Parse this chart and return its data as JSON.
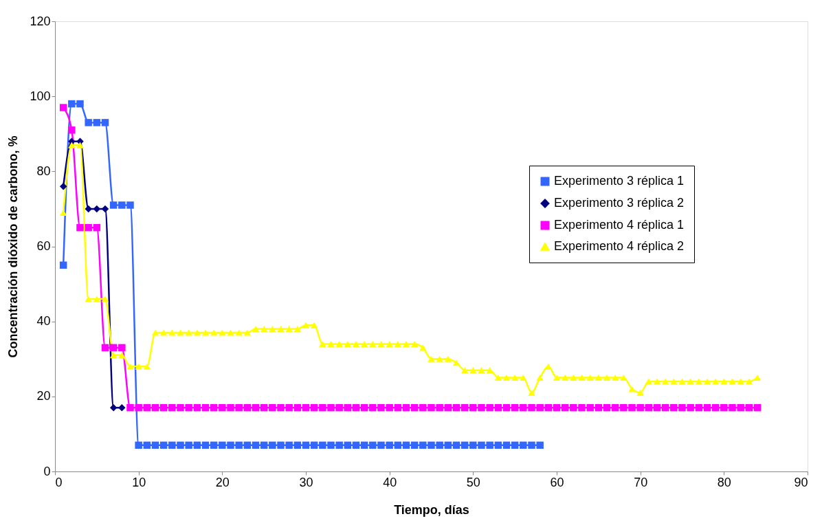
{
  "chart_data": {
    "type": "line",
    "xlabel": "Tiempo, días",
    "ylabel": "Concentración dióxido de carbono, %",
    "xlim": [
      0,
      90
    ],
    "xticks": [
      0,
      10,
      20,
      30,
      40,
      50,
      60,
      70,
      80,
      90
    ],
    "ylim": [
      0,
      120
    ],
    "yticks": [
      0,
      20,
      40,
      60,
      80,
      100,
      120
    ],
    "grid": false,
    "legend": "right",
    "line_style": "solid",
    "series": [
      {
        "name": "Experimento 3 réplica 1",
        "color": "#3366ff",
        "marker": "square",
        "x": [
          1,
          2,
          3,
          4,
          5,
          6,
          7,
          8,
          9,
          10,
          11,
          12,
          13,
          14,
          15,
          16,
          17,
          18,
          19,
          20,
          21,
          22,
          23,
          24,
          25,
          26,
          27,
          28,
          29,
          30,
          31,
          32,
          33,
          34,
          35,
          36,
          37,
          38,
          39,
          40,
          41,
          42,
          43,
          44,
          45,
          46,
          47,
          48,
          49,
          50,
          51,
          52,
          53,
          54,
          55,
          56,
          57,
          58
        ],
        "values": [
          55,
          98,
          98,
          93,
          93,
          93,
          71,
          71,
          71,
          7,
          7,
          7,
          7,
          7,
          7,
          7,
          7,
          7,
          7,
          7,
          7,
          7,
          7,
          7,
          7,
          7,
          7,
          7,
          7,
          7,
          7,
          7,
          7,
          7,
          7,
          7,
          7,
          7,
          7,
          7,
          7,
          7,
          7,
          7,
          7,
          7,
          7,
          7,
          7,
          7,
          7,
          7,
          7,
          7,
          7,
          7,
          7,
          7
        ]
      },
      {
        "name": "Experimento 3 réplica 2",
        "color": "#000080",
        "marker": "diamond",
        "x": [
          1,
          2,
          3,
          4,
          5,
          6,
          7,
          8
        ],
        "values": [
          76,
          88,
          88,
          70,
          70,
          70,
          17,
          17
        ]
      },
      {
        "name": "Experimento 4 réplica 1",
        "color": "#ff00ff",
        "marker": "square",
        "x": [
          1,
          2,
          3,
          4,
          5,
          6,
          7,
          8,
          9,
          10,
          11,
          12,
          13,
          14,
          15,
          16,
          17,
          18,
          19,
          20,
          21,
          22,
          23,
          24,
          25,
          26,
          27,
          28,
          29,
          30,
          31,
          32,
          33,
          34,
          35,
          36,
          37,
          38,
          39,
          40,
          41,
          42,
          43,
          44,
          45,
          46,
          47,
          48,
          49,
          50,
          51,
          52,
          53,
          54,
          55,
          56,
          57,
          58,
          59,
          60,
          61,
          62,
          63,
          64,
          65,
          66,
          67,
          68,
          69,
          70,
          71,
          72,
          73,
          74,
          75,
          76,
          77,
          78,
          79,
          80,
          81,
          82,
          83,
          84
        ],
        "values": [
          97,
          91,
          65,
          65,
          65,
          33,
          33,
          33,
          17,
          17,
          17,
          17,
          17,
          17,
          17,
          17,
          17,
          17,
          17,
          17,
          17,
          17,
          17,
          17,
          17,
          17,
          17,
          17,
          17,
          17,
          17,
          17,
          17,
          17,
          17,
          17,
          17,
          17,
          17,
          17,
          17,
          17,
          17,
          17,
          17,
          17,
          17,
          17,
          17,
          17,
          17,
          17,
          17,
          17,
          17,
          17,
          17,
          17,
          17,
          17,
          17,
          17,
          17,
          17,
          17,
          17,
          17,
          17,
          17,
          17,
          17,
          17,
          17,
          17,
          17,
          17,
          17,
          17,
          17,
          17,
          17,
          17,
          17,
          17
        ]
      },
      {
        "name": "Experimento 4 réplica 2",
        "color": "#ffff00",
        "marker": "triangle",
        "x": [
          1,
          2,
          3,
          4,
          5,
          6,
          7,
          8,
          9,
          10,
          11,
          12,
          13,
          14,
          15,
          16,
          17,
          18,
          19,
          20,
          21,
          22,
          23,
          24,
          25,
          26,
          27,
          28,
          29,
          30,
          31,
          32,
          33,
          34,
          35,
          36,
          37,
          38,
          39,
          40,
          41,
          42,
          43,
          44,
          45,
          46,
          47,
          48,
          49,
          50,
          51,
          52,
          53,
          54,
          55,
          56,
          57,
          58,
          59,
          60,
          61,
          62,
          63,
          64,
          65,
          66,
          67,
          68,
          69,
          70,
          71,
          72,
          73,
          74,
          75,
          76,
          77,
          78,
          79,
          80,
          81,
          82,
          83,
          84
        ],
        "values": [
          69,
          87,
          87,
          46,
          46,
          46,
          31,
          31,
          28,
          28,
          28,
          37,
          37,
          37,
          37,
          37,
          37,
          37,
          37,
          37,
          37,
          37,
          37,
          38,
          38,
          38,
          38,
          38,
          38,
          39,
          39,
          34,
          34,
          34,
          34,
          34,
          34,
          34,
          34,
          34,
          34,
          34,
          34,
          33,
          30,
          30,
          30,
          29,
          27,
          27,
          27,
          27,
          25,
          25,
          25,
          25,
          21,
          25,
          28,
          25,
          25,
          25,
          25,
          25,
          25,
          25,
          25,
          25,
          22,
          21,
          24,
          24,
          24,
          24,
          24,
          24,
          24,
          24,
          24,
          24,
          24,
          24,
          24,
          25
        ]
      }
    ]
  }
}
